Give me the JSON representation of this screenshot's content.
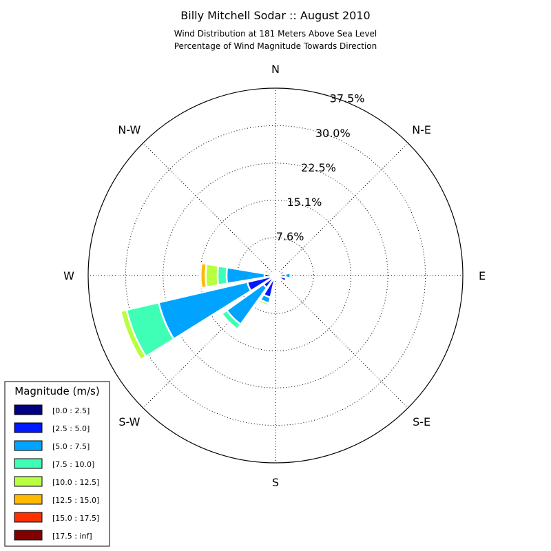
{
  "chart_data": {
    "type": "windrose",
    "title": "Billy Mitchell Sodar :: August 2010",
    "subtitle_lines": [
      "Wind Distribution at 181 Meters Above Sea Level",
      "Percentage of Wind Magnitude Towards Direction"
    ],
    "directions": [
      "N",
      "N-E",
      "E",
      "S-E",
      "S",
      "S-W",
      "W",
      "N-W"
    ],
    "radial_ticks": [
      7.6,
      15.1,
      22.5,
      30.0,
      37.5
    ],
    "radial_tick_labels": [
      "7.6%",
      "15.1%",
      "22.5%",
      "30.0%",
      "37.5%"
    ],
    "r_max": 37.5,
    "legend": {
      "title": "Magnitude (m/s)",
      "bins": [
        {
          "label": "[0.0 : 2.5]",
          "color": "#000080"
        },
        {
          "label": "[2.5 : 5.0]",
          "color": "#0019ff"
        },
        {
          "label": "[5.0 : 7.5]",
          "color": "#00a4ff"
        },
        {
          "label": "[7.5 : 10.0]",
          "color": "#3fffb7"
        },
        {
          "label": "[10.0 : 12.5]",
          "color": "#b7ff3f"
        },
        {
          "label": "[12.5 : 15.0]",
          "color": "#ffb900"
        },
        {
          "label": "[15.0 : 17.5]",
          "color": "#ff3000"
        },
        {
          "label": "[17.5 : inf]",
          "color": "#800000"
        }
      ]
    },
    "sectors": [
      {
        "direction_deg": 0,
        "values": [
          0.0,
          0.3,
          0.2,
          0.0,
          0.0,
          0.0,
          0.0,
          0.0
        ]
      },
      {
        "direction_deg": 22.5,
        "values": [
          0.0,
          0.5,
          0.0,
          0.0,
          0.0,
          0.0,
          0.0,
          0.0
        ]
      },
      {
        "direction_deg": 45,
        "values": [
          0.0,
          0.6,
          0.0,
          0.0,
          0.0,
          0.0,
          0.0,
          0.0
        ]
      },
      {
        "direction_deg": 67.5,
        "values": [
          0.0,
          1.7,
          0.0,
          0.0,
          0.0,
          0.0,
          0.0,
          0.0
        ]
      },
      {
        "direction_deg": 90,
        "values": [
          0.0,
          2.0,
          1.0,
          0.0,
          0.0,
          0.0,
          0.0,
          0.0
        ]
      },
      {
        "direction_deg": 112.5,
        "values": [
          0.0,
          2.2,
          0.0,
          0.0,
          0.0,
          0.0,
          0.0,
          0.0
        ]
      },
      {
        "direction_deg": 135,
        "values": [
          0.0,
          1.1,
          0.0,
          0.0,
          0.0,
          0.0,
          0.0,
          0.0
        ]
      },
      {
        "direction_deg": 157.5,
        "values": [
          0.0,
          1.0,
          0.0,
          0.0,
          0.0,
          0.0,
          0.0,
          0.0
        ]
      },
      {
        "direction_deg": 180,
        "values": [
          0.0,
          0.5,
          0.0,
          0.0,
          0.0,
          0.0,
          0.0,
          0.0
        ]
      },
      {
        "direction_deg": 202.5,
        "values": [
          0.5,
          4.0,
          1.2,
          0.0,
          0.5,
          0.0,
          0.0,
          0.0
        ]
      },
      {
        "direction_deg": 225,
        "values": [
          0.5,
          2.5,
          9.0,
          1.2,
          0.0,
          0.0,
          0.0,
          0.0
        ]
      },
      {
        "direction_deg": 247.5,
        "values": [
          0.4,
          5.4,
          18.2,
          6.6,
          1.2,
          0.0,
          0.0,
          0.0
        ]
      },
      {
        "direction_deg": 270,
        "values": [
          0.4,
          1.8,
          7.6,
          1.8,
          2.4,
          1.0,
          0.0,
          0.0
        ]
      },
      {
        "direction_deg": 292.5,
        "values": [
          0.0,
          0.8,
          0.8,
          0.0,
          0.7,
          0.0,
          0.0,
          0.0
        ]
      },
      {
        "direction_deg": 315,
        "values": [
          0.0,
          0.5,
          0.0,
          0.0,
          0.0,
          0.0,
          0.0,
          0.0
        ]
      },
      {
        "direction_deg": 337.5,
        "values": [
          0.0,
          0.3,
          0.0,
          0.0,
          0.0,
          0.0,
          0.0,
          0.0
        ]
      }
    ]
  }
}
